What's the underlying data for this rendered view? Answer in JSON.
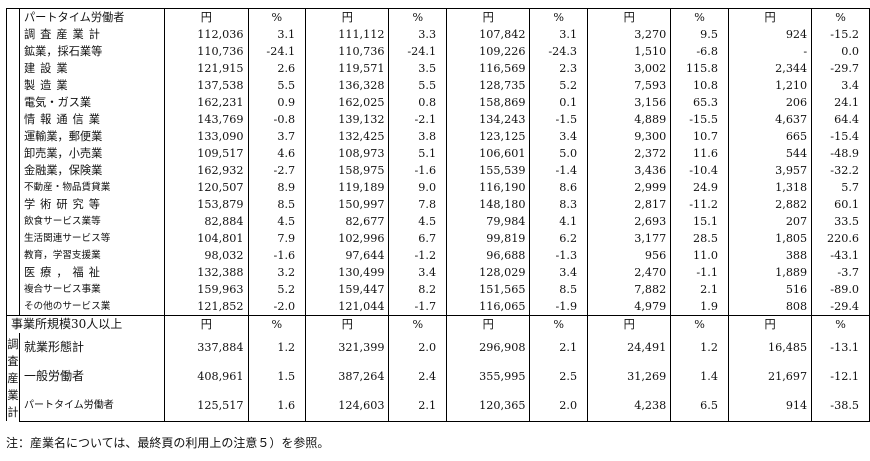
{
  "part_time": {
    "header": "パートタイム労働者",
    "unit_yen": "円",
    "unit_pct": "%",
    "rows": [
      {
        "label": "調査産業計",
        "v": [
          "112,036",
          "3.1",
          "111,112",
          "3.3",
          "107,842",
          "3.1",
          "3,270",
          "9.5",
          "924",
          "-15.2"
        ]
      },
      {
        "label": "鉱業，採石業等",
        "v": [
          "110,736",
          "-24.1",
          "110,736",
          "-24.1",
          "109,226",
          "-24.3",
          "1,510",
          "-6.8",
          "-",
          "0.0"
        ]
      },
      {
        "label": "建設業",
        "v": [
          "121,915",
          "2.6",
          "119,571",
          "3.5",
          "116,569",
          "2.3",
          "3,002",
          "115.8",
          "2,344",
          "-29.7"
        ]
      },
      {
        "label": "製造業",
        "v": [
          "137,538",
          "5.5",
          "136,328",
          "5.5",
          "128,735",
          "5.2",
          "7,593",
          "10.8",
          "1,210",
          "3.4"
        ]
      },
      {
        "label": "電気・ガス業",
        "v": [
          "162,231",
          "0.9",
          "162,025",
          "0.8",
          "158,869",
          "0.1",
          "3,156",
          "65.3",
          "206",
          "24.1"
        ]
      },
      {
        "label": "情報通信業",
        "v": [
          "143,769",
          "-0.8",
          "139,132",
          "-2.1",
          "134,243",
          "-1.5",
          "4,889",
          "-15.5",
          "4,637",
          "64.4"
        ]
      },
      {
        "label": "運輸業，郵便業",
        "v": [
          "133,090",
          "3.7",
          "132,425",
          "3.8",
          "123,125",
          "3.4",
          "9,300",
          "10.7",
          "665",
          "-15.4"
        ]
      },
      {
        "label": "卸売業，小売業",
        "v": [
          "109,517",
          "4.6",
          "108,973",
          "5.1",
          "106,601",
          "5.0",
          "2,372",
          "11.6",
          "544",
          "-48.9"
        ]
      },
      {
        "label": "金融業，保険業",
        "v": [
          "162,932",
          "-2.7",
          "158,975",
          "-1.6",
          "155,539",
          "-1.4",
          "3,436",
          "-10.4",
          "3,957",
          "-32.2"
        ]
      },
      {
        "label": "不動産・物品賃貸業",
        "v": [
          "120,507",
          "8.9",
          "119,189",
          "9.0",
          "116,190",
          "8.6",
          "2,999",
          "24.9",
          "1,318",
          "5.7"
        ]
      },
      {
        "label": "学術研究等",
        "v": [
          "153,879",
          "8.5",
          "150,997",
          "7.8",
          "148,180",
          "8.3",
          "2,817",
          "-11.2",
          "2,882",
          "60.1"
        ]
      },
      {
        "label": "飲食サービス業等",
        "v": [
          "82,884",
          "4.5",
          "82,677",
          "4.5",
          "79,984",
          "4.1",
          "2,693",
          "15.1",
          "207",
          "33.5"
        ]
      },
      {
        "label": "生活関連サービス等",
        "v": [
          "104,801",
          "7.9",
          "102,996",
          "6.7",
          "99,819",
          "6.2",
          "3,177",
          "28.5",
          "1,805",
          "220.6"
        ]
      },
      {
        "label": "教育，学習支援業",
        "v": [
          "98,032",
          "-1.6",
          "97,644",
          "-1.2",
          "96,688",
          "-1.3",
          "956",
          "11.0",
          "388",
          "-43.1"
        ]
      },
      {
        "label": "医療，福祉",
        "v": [
          "132,388",
          "3.2",
          "130,499",
          "3.4",
          "128,029",
          "3.4",
          "2,470",
          "-1.1",
          "1,889",
          "-3.7"
        ]
      },
      {
        "label": "複合サービス事業",
        "v": [
          "159,963",
          "5.2",
          "159,447",
          "8.2",
          "151,565",
          "8.5",
          "7,882",
          "2.1",
          "516",
          "-89.0"
        ]
      },
      {
        "label": "その他のサービス業",
        "v": [
          "121,852",
          "-2.0",
          "121,044",
          "-1.7",
          "116,065",
          "-1.9",
          "4,979",
          "1.9",
          "808",
          "-29.4"
        ]
      }
    ]
  },
  "size30": {
    "header": "事業所規模30人以上",
    "side_label": [
      "調",
      "査",
      "産",
      "業",
      "計"
    ],
    "rows": [
      {
        "label": "就業形態計",
        "v": [
          "337,884",
          "1.2",
          "321,399",
          "2.0",
          "296,908",
          "2.1",
          "24,491",
          "1.2",
          "16,485",
          "-13.1"
        ]
      },
      {
        "label": "一般労働者",
        "v": [
          "408,961",
          "1.5",
          "387,264",
          "2.4",
          "355,995",
          "2.5",
          "31,269",
          "1.4",
          "21,697",
          "-12.1"
        ]
      },
      {
        "label": "パートタイム労働者",
        "v": [
          "125,517",
          "1.6",
          "124,603",
          "2.1",
          "120,365",
          "2.0",
          "4,238",
          "6.5",
          "914",
          "-38.5"
        ]
      }
    ]
  },
  "note": "注：産業名については、最終頁の利用上の注意５）を参照。"
}
